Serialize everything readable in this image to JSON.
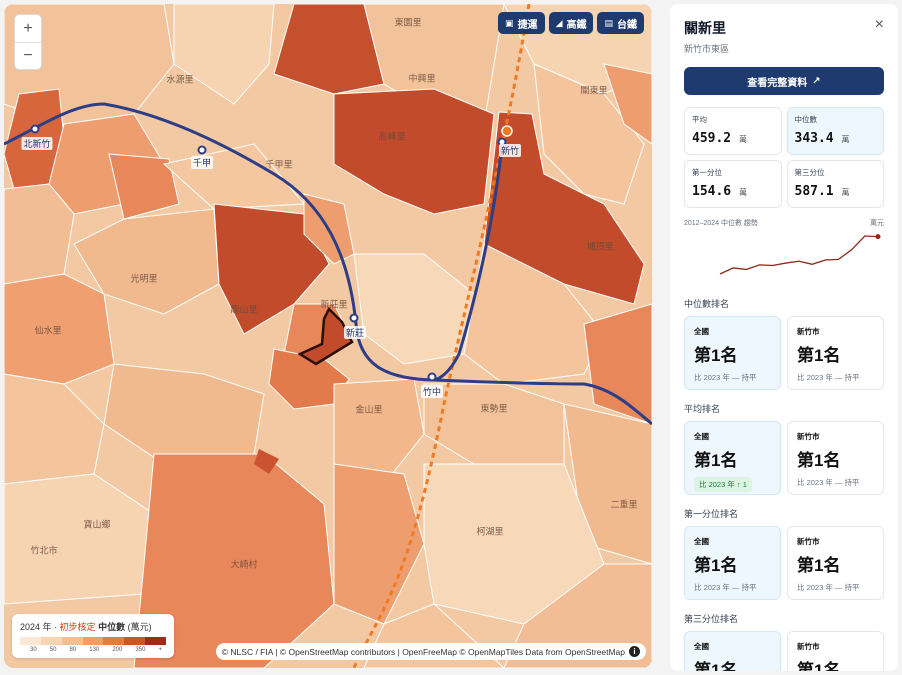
{
  "map": {
    "zoom_in": "+",
    "zoom_out": "−",
    "layers": [
      {
        "label": "捷運",
        "icon": "metro-icon"
      },
      {
        "label": "高鐵",
        "icon": "hsr-icon"
      },
      {
        "label": "台鐵",
        "icon": "train-icon"
      }
    ],
    "places": [
      {
        "name": "龍山里"
      },
      {
        "name": "新莊里"
      },
      {
        "name": "金山里"
      },
      {
        "name": "關東里"
      },
      {
        "name": "光明里"
      },
      {
        "name": "東園里"
      },
      {
        "name": "仙水里"
      },
      {
        "name": "千甲里"
      },
      {
        "name": "水源里"
      },
      {
        "name": "寶山鄉"
      },
      {
        "name": "大崎村"
      },
      {
        "name": "二重里"
      },
      {
        "name": "柯湖里"
      },
      {
        "name": "中興里"
      },
      {
        "name": "埔頂里"
      },
      {
        "name": "竹北市"
      },
      {
        "name": "東勢里"
      },
      {
        "name": "高峰里"
      }
    ],
    "stations": [
      {
        "name": "北新竹"
      },
      {
        "name": "千甲"
      },
      {
        "name": "新竹"
      },
      {
        "name": "新莊"
      },
      {
        "name": "竹中"
      }
    ],
    "legend": {
      "year": "2024",
      "year_suffix": "年 · ",
      "status": "初步核定",
      "metric": "中位數",
      "unit": "(萬元)",
      "ticks": [
        "30",
        "50",
        "80",
        "130",
        "200",
        "350",
        "+"
      ],
      "colors": [
        "#fbe7d2",
        "#f7d4b4",
        "#f4bf94",
        "#ee9e6e",
        "#e27a4c",
        "#cb5330",
        "#9f2a1a"
      ]
    },
    "attribution": "© NLSC / FIA | © OpenStreetMap contributors | OpenFreeMap © OpenMapTiles Data from OpenStreetMap",
    "info_label": "i"
  },
  "panel": {
    "title": "關新里",
    "subtitle": "新竹市東區",
    "close_label": "×",
    "cta_label": "查看完整資料",
    "cta_icon": "↗",
    "stats": [
      {
        "label": "平均",
        "value": "459.2",
        "unit": "萬"
      },
      {
        "label": "中位數",
        "value": "343.4",
        "unit": "萬"
      },
      {
        "label": "第一分位",
        "value": "154.6",
        "unit": "萬"
      },
      {
        "label": "第三分位",
        "value": "587.1",
        "unit": "萬"
      }
    ],
    "trend": {
      "label": "2012–2024 中位數 趨勢",
      "unit": "萬元",
      "values": [
        220,
        240,
        235,
        250,
        248,
        256,
        262,
        252,
        266,
        268,
        300,
        345,
        343
      ]
    },
    "sections": [
      {
        "title": "中位數排名",
        "items": [
          {
            "scope": "全國",
            "rank": "第1名",
            "change": "比 2023 年 — 持平",
            "up": false
          },
          {
            "scope": "新竹市",
            "rank": "第1名",
            "change": "比 2023 年 — 持平",
            "up": false
          }
        ]
      },
      {
        "title": "平均排名",
        "items": [
          {
            "scope": "全國",
            "rank": "第1名",
            "change": "比 2023 年 ↑ 1",
            "up": true
          },
          {
            "scope": "新竹市",
            "rank": "第1名",
            "change": "比 2023 年 — 持平",
            "up": false
          }
        ]
      },
      {
        "title": "第一分位排名",
        "items": [
          {
            "scope": "全國",
            "rank": "第1名",
            "change": "比 2023 年 — 持平",
            "up": false
          },
          {
            "scope": "新竹市",
            "rank": "第1名",
            "change": "比 2023 年 — 持平",
            "up": false
          }
        ]
      },
      {
        "title": "第三分位排名",
        "items": [
          {
            "scope": "全國",
            "rank": "第1名",
            "change": "比 2023 年 — 持平",
            "up": false
          },
          {
            "scope": "新竹市",
            "rank": "第1名",
            "change": "比 2023 年 — 持平",
            "up": false
          }
        ]
      }
    ]
  }
}
